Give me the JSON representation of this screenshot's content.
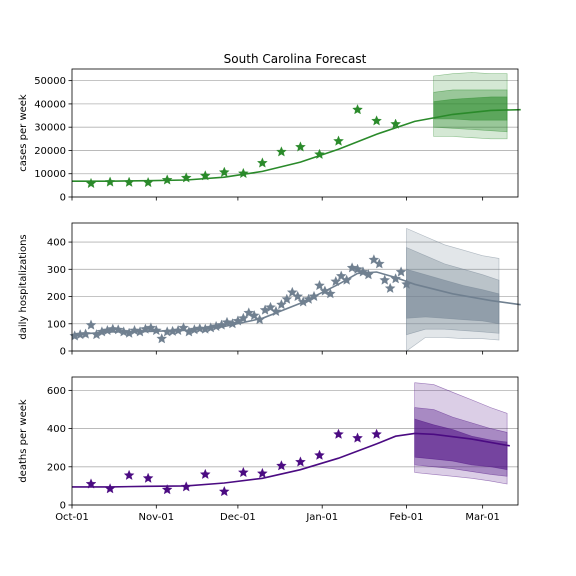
{
  "title": "South Carolina Forecast",
  "x_tick_labels": [
    "Oct-01",
    "Nov-01",
    "Dec-01",
    "Jan-01",
    "Feb-01",
    "Mar-01"
  ],
  "chart_data": [
    {
      "type": "line",
      "ylabel": "cases per week",
      "ylim": [
        0,
        55000
      ],
      "yticks": [
        0,
        10000,
        20000,
        30000,
        40000,
        50000
      ],
      "grid": "horizontal",
      "color": "#2a8a2a",
      "fit": [
        [
          0,
          6800
        ],
        [
          14,
          6800
        ],
        [
          28,
          7000
        ],
        [
          42,
          7300
        ],
        [
          56,
          8500
        ],
        [
          70,
          11000
        ],
        [
          84,
          15000
        ],
        [
          98,
          20500
        ],
        [
          112,
          27000
        ],
        [
          126,
          32500
        ],
        [
          140,
          35500
        ],
        [
          154,
          37200
        ],
        [
          165,
          37500
        ]
      ],
      "observed": [
        [
          7,
          5800
        ],
        [
          14,
          6400
        ],
        [
          21,
          6300
        ],
        [
          28,
          6200
        ],
        [
          35,
          7300
        ],
        [
          42,
          8200
        ],
        [
          49,
          9100
        ],
        [
          56,
          10600
        ],
        [
          63,
          10100
        ],
        [
          70,
          14600
        ],
        [
          77,
          19400
        ],
        [
          84,
          21500
        ],
        [
          91,
          18300
        ],
        [
          98,
          24000
        ],
        [
          105,
          37500
        ],
        [
          112,
          32700
        ],
        [
          119,
          31300
        ]
      ],
      "bands": [
        [
          [
            133,
            26000,
            52000
          ],
          [
            140,
            26000,
            53000
          ],
          [
            147,
            25500,
            53500
          ],
          [
            154,
            25000,
            53000
          ],
          [
            160,
            25000,
            53000
          ]
        ],
        [
          [
            133,
            30000,
            45000
          ],
          [
            140,
            29500,
            46000
          ],
          [
            147,
            29000,
            46000
          ],
          [
            154,
            28500,
            46000
          ],
          [
            160,
            28000,
            46000
          ]
        ],
        [
          [
            133,
            33500,
            41000
          ],
          [
            140,
            33500,
            42000
          ],
          [
            147,
            33000,
            42500
          ],
          [
            154,
            33000,
            43000
          ],
          [
            160,
            33000,
            43000
          ]
        ]
      ]
    },
    {
      "type": "line",
      "ylabel": "daily hospitalizations",
      "ylim": [
        0,
        470
      ],
      "yticks": [
        0,
        100,
        200,
        300,
        400
      ],
      "grid": "horizontal",
      "color": "#708090",
      "fit": [
        [
          0,
          60
        ],
        [
          14,
          70
        ],
        [
          28,
          72
        ],
        [
          42,
          76
        ],
        [
          56,
          90
        ],
        [
          70,
          120
        ],
        [
          84,
          175
        ],
        [
          98,
          245
        ],
        [
          105,
          285
        ],
        [
          112,
          290
        ],
        [
          119,
          270
        ],
        [
          126,
          245
        ],
        [
          140,
          210
        ],
        [
          154,
          185
        ],
        [
          165,
          170
        ]
      ],
      "observed": [
        [
          1,
          55
        ],
        [
          3,
          60
        ],
        [
          5,
          62
        ],
        [
          7,
          95
        ],
        [
          9,
          60
        ],
        [
          11,
          70
        ],
        [
          13,
          75
        ],
        [
          15,
          80
        ],
        [
          17,
          78
        ],
        [
          19,
          70
        ],
        [
          21,
          65
        ],
        [
          23,
          75
        ],
        [
          25,
          70
        ],
        [
          27,
          80
        ],
        [
          29,
          85
        ],
        [
          31,
          75
        ],
        [
          33,
          45
        ],
        [
          35,
          70
        ],
        [
          37,
          72
        ],
        [
          39,
          75
        ],
        [
          41,
          85
        ],
        [
          43,
          70
        ],
        [
          45,
          78
        ],
        [
          47,
          82
        ],
        [
          49,
          80
        ],
        [
          51,
          85
        ],
        [
          53,
          90
        ],
        [
          55,
          95
        ],
        [
          57,
          105
        ],
        [
          59,
          100
        ],
        [
          61,
          110
        ],
        [
          63,
          120
        ],
        [
          65,
          140
        ],
        [
          67,
          130
        ],
        [
          69,
          115
        ],
        [
          71,
          150
        ],
        [
          73,
          160
        ],
        [
          75,
          145
        ],
        [
          77,
          170
        ],
        [
          79,
          190
        ],
        [
          81,
          215
        ],
        [
          83,
          200
        ],
        [
          85,
          180
        ],
        [
          87,
          190
        ],
        [
          89,
          200
        ],
        [
          91,
          240
        ],
        [
          93,
          220
        ],
        [
          95,
          210
        ],
        [
          97,
          255
        ],
        [
          99,
          275
        ],
        [
          101,
          260
        ],
        [
          103,
          305
        ],
        [
          105,
          300
        ],
        [
          107,
          290
        ],
        [
          109,
          280
        ],
        [
          111,
          335
        ],
        [
          113,
          320
        ],
        [
          115,
          260
        ],
        [
          117,
          230
        ],
        [
          119,
          265
        ],
        [
          121,
          290
        ],
        [
          123,
          245
        ]
      ],
      "bands": [
        [
          [
            123,
            0,
            450
          ],
          [
            130,
            50,
            420
          ],
          [
            137,
            50,
            390
          ],
          [
            144,
            45,
            370
          ],
          [
            151,
            45,
            350
          ],
          [
            157,
            40,
            340
          ]
        ],
        [
          [
            123,
            60,
            380
          ],
          [
            130,
            80,
            350
          ],
          [
            137,
            80,
            320
          ],
          [
            144,
            75,
            300
          ],
          [
            151,
            70,
            280
          ],
          [
            157,
            65,
            260
          ]
        ],
        [
          [
            123,
            120,
            300
          ],
          [
            130,
            125,
            280
          ],
          [
            137,
            120,
            260
          ],
          [
            144,
            115,
            240
          ],
          [
            151,
            110,
            225
          ],
          [
            157,
            100,
            210
          ]
        ]
      ]
    },
    {
      "type": "line",
      "ylabel": "deaths per week",
      "ylim": [
        0,
        670
      ],
      "yticks": [
        0,
        200,
        400,
        600
      ],
      "grid": "horizontal",
      "color": "#4b0b82",
      "fit": [
        [
          0,
          95
        ],
        [
          14,
          95
        ],
        [
          28,
          98
        ],
        [
          42,
          100
        ],
        [
          56,
          115
        ],
        [
          70,
          140
        ],
        [
          84,
          185
        ],
        [
          98,
          245
        ],
        [
          112,
          320
        ],
        [
          119,
          360
        ],
        [
          126,
          375
        ],
        [
          133,
          370
        ],
        [
          147,
          345
        ],
        [
          161,
          310
        ]
      ],
      "observed": [
        [
          7,
          110
        ],
        [
          14,
          85
        ],
        [
          21,
          155
        ],
        [
          28,
          140
        ],
        [
          35,
          80
        ],
        [
          42,
          95
        ],
        [
          49,
          160
        ],
        [
          56,
          70
        ],
        [
          63,
          170
        ],
        [
          70,
          165
        ],
        [
          77,
          205
        ],
        [
          84,
          225
        ],
        [
          91,
          260
        ],
        [
          98,
          370
        ],
        [
          105,
          350
        ],
        [
          112,
          370
        ]
      ],
      "bands": [
        [
          [
            126,
            170,
            640
          ],
          [
            133,
            160,
            630
          ],
          [
            140,
            150,
            590
          ],
          [
            147,
            140,
            550
          ],
          [
            154,
            125,
            510
          ],
          [
            160,
            110,
            480
          ]
        ],
        [
          [
            126,
            210,
            510
          ],
          [
            133,
            200,
            500
          ],
          [
            140,
            190,
            460
          ],
          [
            147,
            175,
            430
          ],
          [
            154,
            160,
            400
          ],
          [
            160,
            150,
            380
          ]
        ],
        [
          [
            126,
            250,
            450
          ],
          [
            133,
            240,
            420
          ],
          [
            140,
            230,
            395
          ],
          [
            147,
            210,
            360
          ],
          [
            154,
            200,
            340
          ],
          [
            160,
            185,
            330
          ]
        ]
      ]
    }
  ]
}
